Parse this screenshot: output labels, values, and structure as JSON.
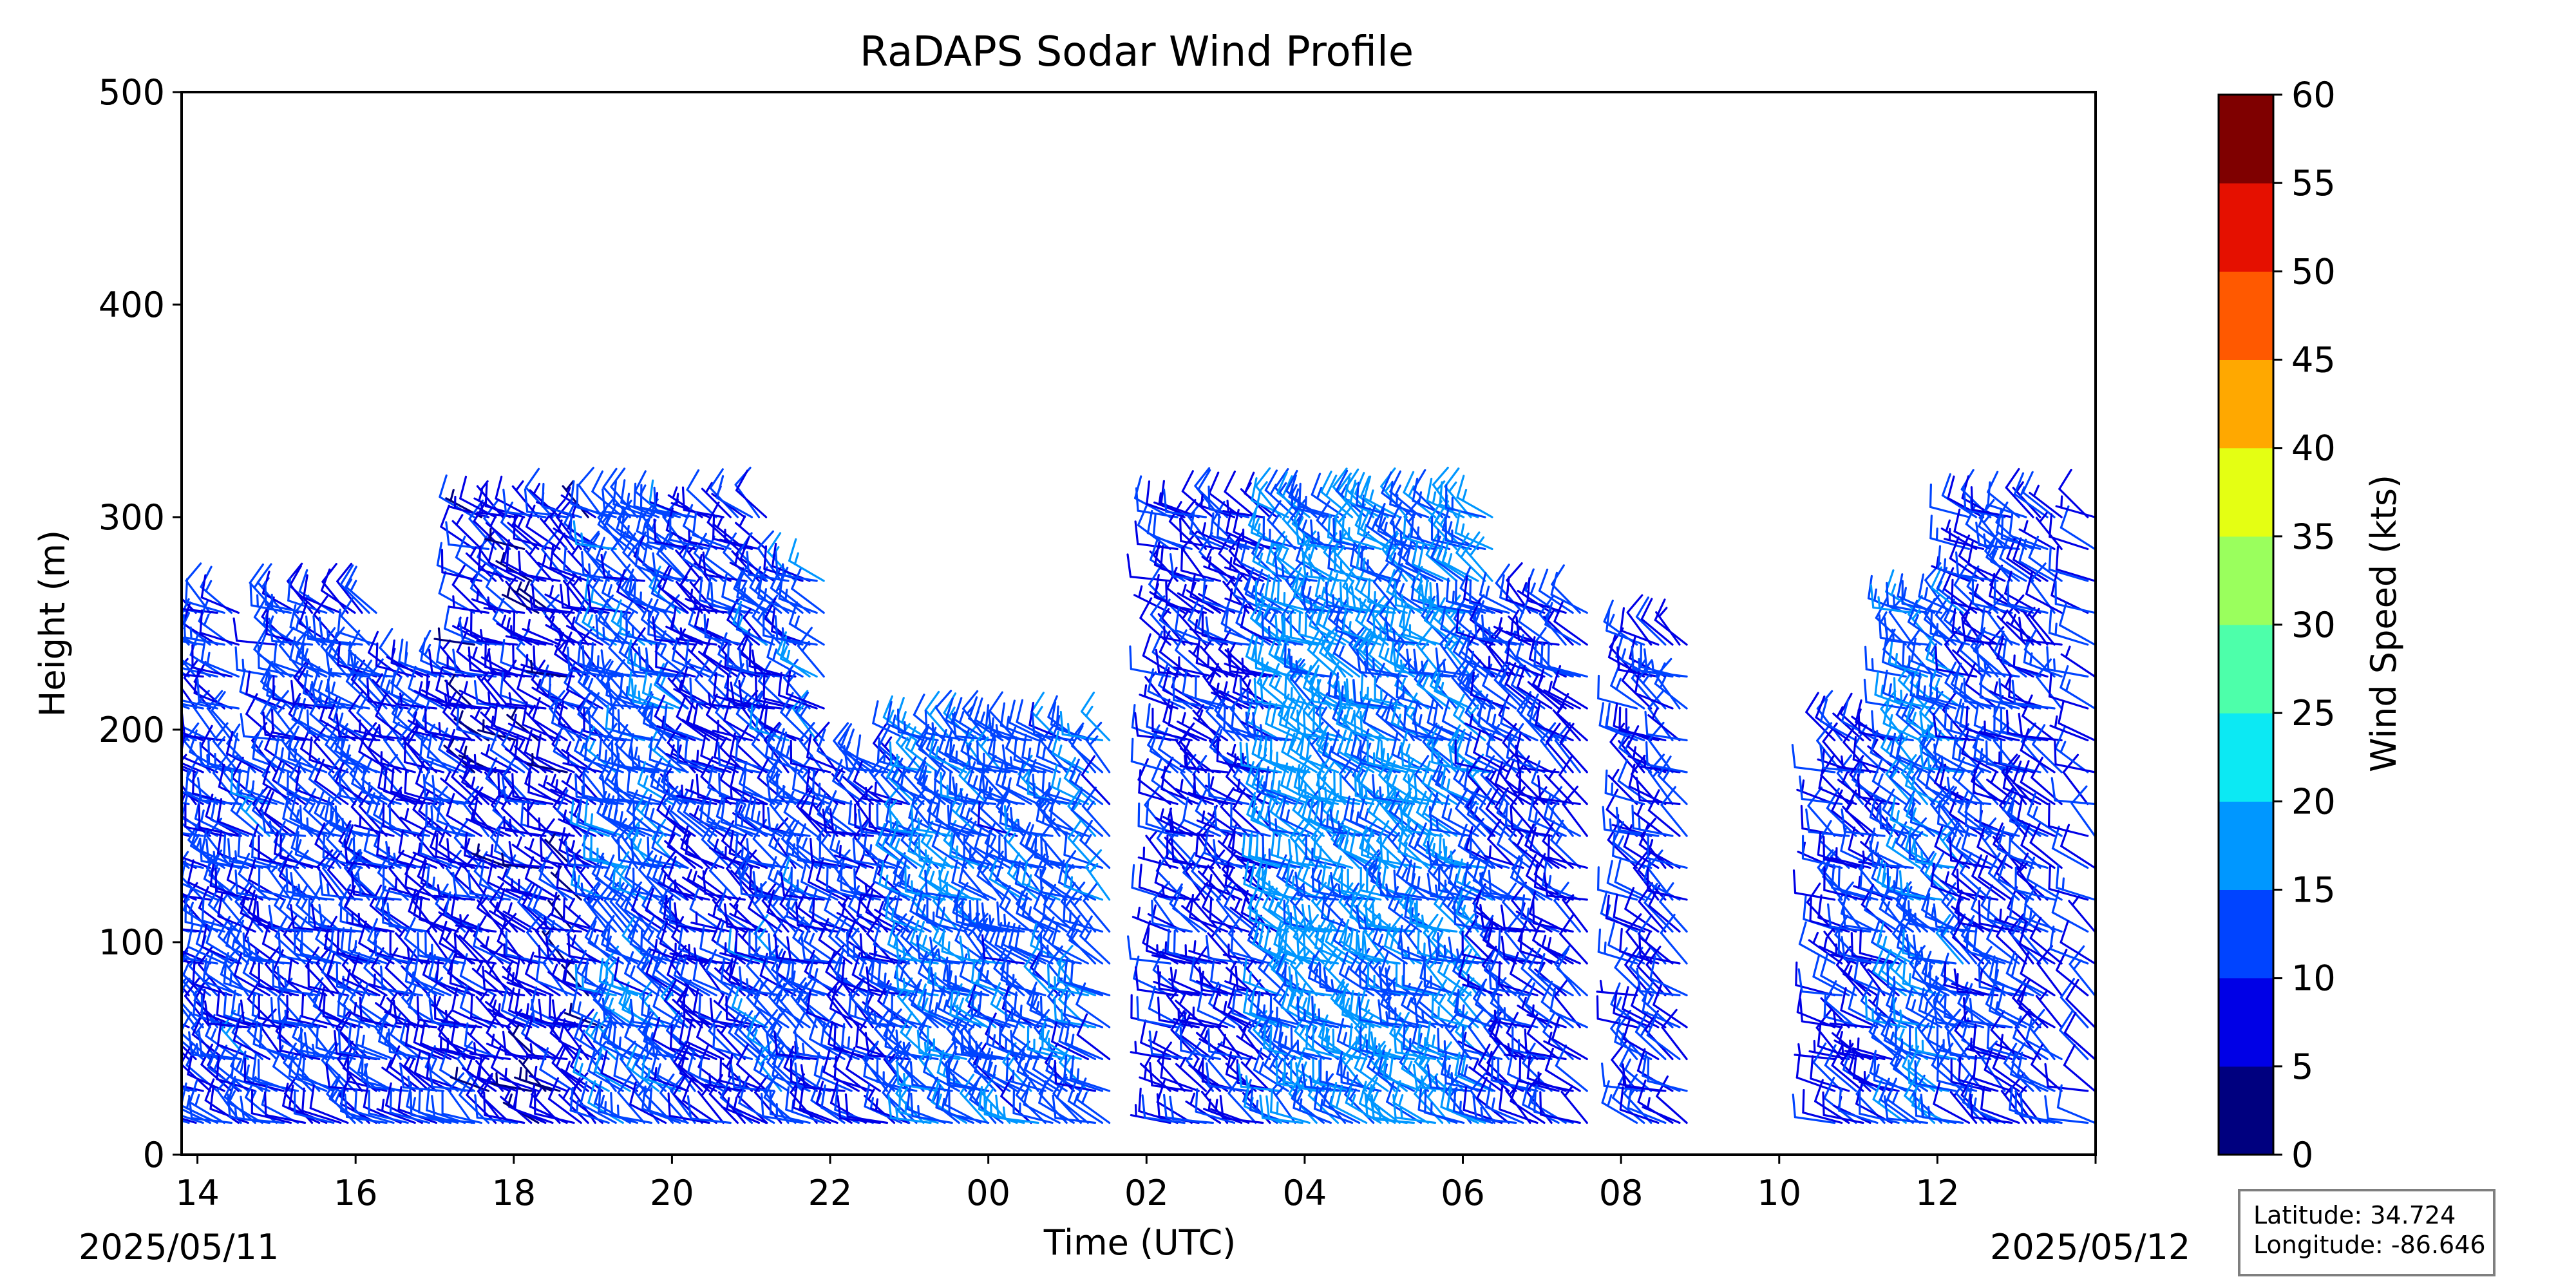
{
  "chart_data": {
    "type": "wind_barbs",
    "title": "RaDAPS Sodar Wind Profile",
    "xlabel": "Time (UTC)",
    "ylabel": "Height (m)",
    "ylim": [
      0,
      500
    ],
    "yticks": [
      "0",
      "100",
      "200",
      "300",
      "400",
      "500"
    ],
    "x_start_hour": 13.8,
    "x_end_hour": 38.0,
    "xticks": [
      "14",
      "16",
      "18",
      "20",
      "22",
      "00",
      "02",
      "04",
      "06",
      "08",
      "10",
      "12"
    ],
    "date_start": "2025/05/11",
    "date_end": "2025/05/12",
    "colorbar": {
      "label": "Wind Speed (kts)",
      "ticks": [
        "0",
        "5",
        "10",
        "15",
        "20",
        "25",
        "30",
        "35",
        "40",
        "45",
        "50",
        "55",
        "60"
      ],
      "colors": [
        "#00007f",
        "#0000e6",
        "#0044ff",
        "#0097ff",
        "#0ce9f3",
        "#4dffaa",
        "#9aff5d",
        "#e4ff13",
        "#ffa800",
        "#ff5900",
        "#e51000",
        "#7f0000"
      ]
    },
    "barb_levels_m": [
      15,
      30,
      45,
      60,
      75,
      90,
      105,
      120,
      135,
      150,
      165,
      180,
      195,
      210,
      225,
      240,
      255,
      270,
      285,
      300
    ],
    "profiles": [
      {
        "hour_start": 13.8,
        "hour_end": 14.55,
        "top_m": 265,
        "speed_kts": 11
      },
      {
        "hour_start": 14.55,
        "hour_end": 15.0,
        "top_m": 190,
        "speed_kts": 12
      },
      {
        "hour_start": 15.0,
        "hour_end": 16.3,
        "top_m": 265,
        "speed_kts": 11
      },
      {
        "hour_start": 16.3,
        "hour_end": 17.5,
        "top_m": 225,
        "speed_kts": 10
      },
      {
        "hour_start": 17.5,
        "hour_end": 19.2,
        "top_m": 310,
        "speed_kts": 8
      },
      {
        "hour_start": 19.2,
        "hour_end": 20.2,
        "top_m": 310,
        "speed_kts": 13
      },
      {
        "hour_start": 20.2,
        "hour_end": 21.2,
        "top_m": 310,
        "speed_kts": 9
      },
      {
        "hour_start": 21.2,
        "hour_end": 22.0,
        "top_m": 280,
        "speed_kts": 12
      },
      {
        "hour_start": 22.0,
        "hour_end": 23.0,
        "top_m": 190,
        "speed_kts": 10
      },
      {
        "hour_start": 23.0,
        "hour_end": 24.0,
        "top_m": 205,
        "speed_kts": 14
      },
      {
        "hour_start": 24.0,
        "hour_end": 25.6,
        "top_m": 205,
        "speed_kts": 13
      },
      {
        "hour_start": 26.3,
        "hour_end": 27.7,
        "top_m": 310,
        "speed_kts": 9
      },
      {
        "hour_start": 27.7,
        "hour_end": 29.2,
        "top_m": 310,
        "speed_kts": 16
      },
      {
        "hour_start": 29.2,
        "hour_end": 30.4,
        "top_m": 310,
        "speed_kts": 15
      },
      {
        "hour_start": 30.4,
        "hour_end": 31.6,
        "top_m": 265,
        "speed_kts": 10
      },
      {
        "hour_start": 32.2,
        "hour_end": 32.9,
        "top_m": 240,
        "speed_kts": 10
      },
      {
        "hour_start": 34.7,
        "hour_end": 35.6,
        "top_m": 205,
        "speed_kts": 9
      },
      {
        "hour_start": 35.6,
        "hour_end": 36.4,
        "top_m": 265,
        "speed_kts": 14
      },
      {
        "hour_start": 36.4,
        "hour_end": 37.6,
        "top_m": 310,
        "speed_kts": 10
      },
      {
        "hour_start": 37.9,
        "hour_end": 38.0,
        "top_m": 310,
        "speed_kts": 10
      }
    ]
  },
  "location": {
    "latitude": "Latitude: 34.724",
    "longitude": "Longitude: -86.646"
  }
}
